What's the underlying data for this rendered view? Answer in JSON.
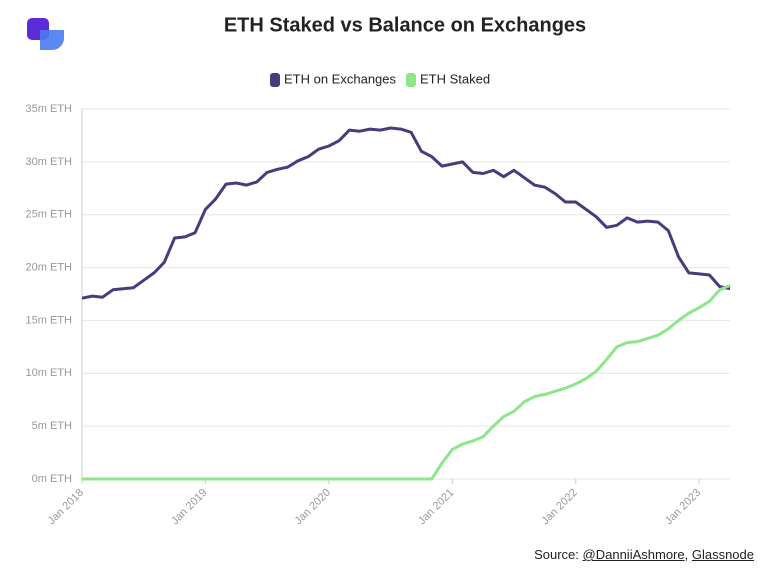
{
  "chart_data": {
    "type": "line",
    "title": "ETH Staked vs Balance on Exchanges",
    "source": {
      "prefix": "Source:",
      "links": [
        "@DanniiAshmore",
        "Glassnode"
      ]
    },
    "x": [
      "Jan 2018",
      "Feb 2018",
      "Mar 2018",
      "Apr 2018",
      "May 2018",
      "Jun 2018",
      "Jul 2018",
      "Aug 2018",
      "Sep 2018",
      "Oct 2018",
      "Nov 2018",
      "Dec 2018",
      "Jan 2019",
      "Feb 2019",
      "Mar 2019",
      "Apr 2019",
      "May 2019",
      "Jun 2019",
      "Jul 2019",
      "Aug 2019",
      "Sep 2019",
      "Oct 2019",
      "Nov 2019",
      "Dec 2019",
      "Jan 2020",
      "Feb 2020",
      "Mar 2020",
      "Apr 2020",
      "May 2020",
      "Jun 2020",
      "Jul 2020",
      "Aug 2020",
      "Sep 2020",
      "Oct 2020",
      "Nov 2020",
      "Dec 2020",
      "Jan 2021",
      "Feb 2021",
      "Mar 2021",
      "Apr 2021",
      "May 2021",
      "Jun 2021",
      "Jul 2021",
      "Aug 2021",
      "Sep 2021",
      "Oct 2021",
      "Nov 2021",
      "Dec 2021",
      "Jan 2022",
      "Feb 2022",
      "Mar 2022",
      "Apr 2022",
      "May 2022",
      "Jun 2022",
      "Jul 2022",
      "Aug 2022",
      "Sep 2022",
      "Oct 2022",
      "Nov 2022",
      "Dec 2022",
      "Jan 2023",
      "Feb 2023",
      "Mar 2023",
      "Apr 2023"
    ],
    "series": [
      {
        "name": "ETH on Exchanges",
        "color": "#4b3a7c",
        "values": [
          17.1,
          17.3,
          17.2,
          17.9,
          18.0,
          18.1,
          18.8,
          19.5,
          20.5,
          22.8,
          22.9,
          23.3,
          25.5,
          26.5,
          27.9,
          28.0,
          27.8,
          28.1,
          29.0,
          29.3,
          29.5,
          30.1,
          30.5,
          31.2,
          31.5,
          32.0,
          33.0,
          32.9,
          33.1,
          33.0,
          33.2,
          33.1,
          32.8,
          31.0,
          30.5,
          29.6,
          29.8,
          30.0,
          29.0,
          28.9,
          29.2,
          28.6,
          29.2,
          28.5,
          27.8,
          27.6,
          27.0,
          26.2,
          26.2,
          25.5,
          24.8,
          23.8,
          24.0,
          24.7,
          24.3,
          24.4,
          24.3,
          23.5,
          21.0,
          19.5,
          19.4,
          19.3,
          18.2,
          18.0
        ]
      },
      {
        "name": "ETH Staked",
        "color": "#8ee68a",
        "values": [
          0,
          0,
          0,
          0,
          0,
          0,
          0,
          0,
          0,
          0,
          0,
          0,
          0,
          0,
          0,
          0,
          0,
          0,
          0,
          0,
          0,
          0,
          0,
          0,
          0,
          0,
          0,
          0,
          0,
          0,
          0,
          0,
          0,
          0,
          0,
          1.5,
          2.8,
          3.3,
          3.6,
          4.0,
          5.0,
          5.9,
          6.4,
          7.3,
          7.8,
          8.0,
          8.3,
          8.6,
          9.0,
          9.5,
          10.2,
          11.3,
          12.5,
          12.9,
          13.0,
          13.3,
          13.6,
          14.2,
          15.0,
          15.7,
          16.2,
          16.8,
          17.9,
          18.3
        ]
      }
    ],
    "ylim": [
      0,
      35
    ],
    "yticks": [
      {
        "value": 0,
        "label": "0m ETH"
      },
      {
        "value": 5,
        "label": "5m ETH"
      },
      {
        "value": 10,
        "label": "10m ETH"
      },
      {
        "value": 15,
        "label": "15m ETH"
      },
      {
        "value": 20,
        "label": "20m ETH"
      },
      {
        "value": 25,
        "label": "25m ETH"
      },
      {
        "value": 30,
        "label": "30m ETH"
      },
      {
        "value": 35,
        "label": "35m ETH"
      }
    ],
    "xticks": [
      "Jan 2018",
      "Jan 2019",
      "Jan 2020",
      "Jan 2021",
      "Jan 2022",
      "Jan 2023"
    ],
    "grid": true
  }
}
